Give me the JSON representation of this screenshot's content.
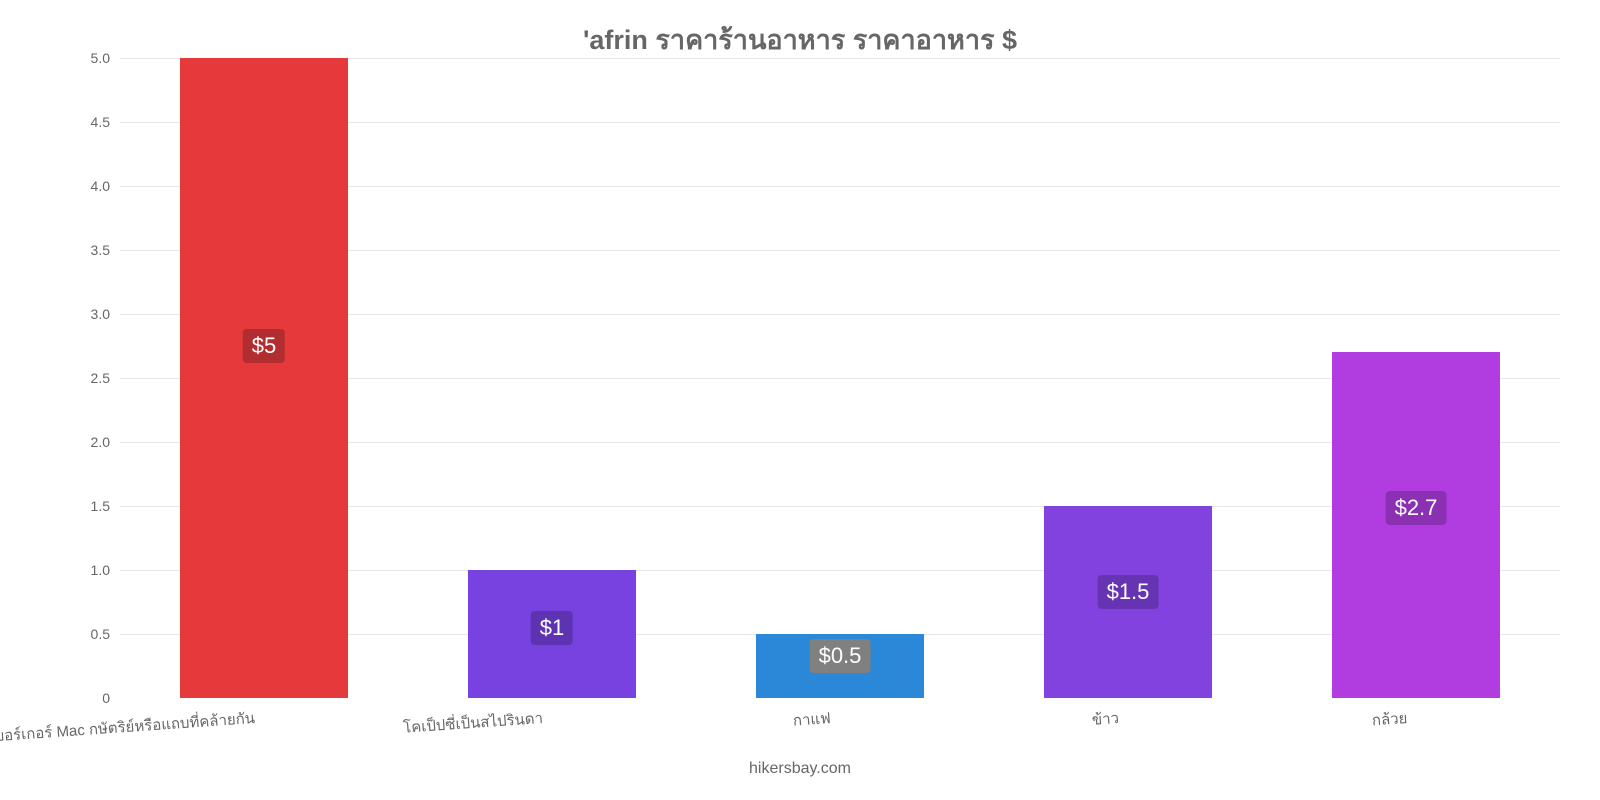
{
  "chart": {
    "type": "bar",
    "title": "'afrin ราคาร้านอาหาร ราคาอาหาร $",
    "title_color": "#666666",
    "title_fontsize": 27,
    "background_color": "#ffffff",
    "grid_color": "#e6e6e6",
    "ylim": [
      0,
      5
    ],
    "yticks": [
      0,
      0.5,
      1.0,
      1.5,
      2.0,
      2.5,
      3.0,
      3.5,
      4.0,
      4.5,
      5.0
    ],
    "ytick_labels": [
      "0",
      "0.5",
      "1.0",
      "1.5",
      "2.0",
      "2.5",
      "3.0",
      "3.5",
      "4.0",
      "4.5",
      "5.0"
    ],
    "label_color": "#666666",
    "categories": [
      "เบอร์เกอร์ Mac กษัตริย์หรือแถบที่คล้ายกัน",
      "โคเป็ปซี่เป็นสไปรินดา",
      "กาแฟ",
      "ข้าว",
      "กล้วย"
    ],
    "values": [
      5,
      1,
      0.5,
      1.5,
      2.7
    ],
    "value_badges": [
      "$5",
      "$1",
      "$0.5",
      "$1.5",
      "$2.7"
    ],
    "bar_colors": [
      "#e6393c",
      "#7742e0",
      "#2b88d8",
      "#8242e0",
      "#b13de0"
    ],
    "badge_colors": [
      "#b22d2f",
      "#5d33b2",
      "#808080",
      "#6634b2",
      "#8b30b2"
    ],
    "badge_text_color": "#ffffff",
    "bar_width_ratio": 0.58,
    "attribution": "hikersbay.com"
  }
}
